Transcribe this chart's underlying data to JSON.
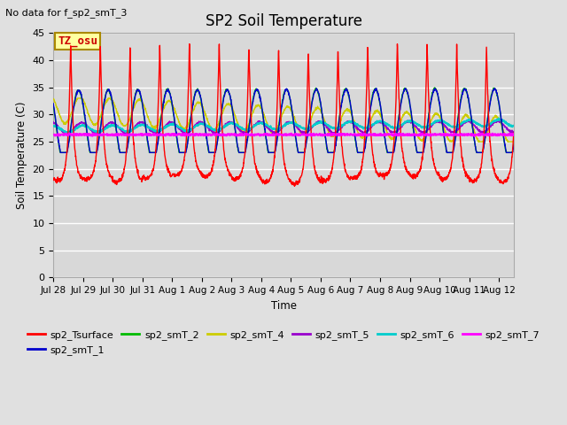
{
  "title": "SP2 Soil Temperature",
  "ylabel": "Soil Temperature (C)",
  "xlabel": "Time",
  "no_data_text": "No data for f_sp2_smT_3",
  "tz_label": "TZ_osu",
  "ylim": [
    0,
    45
  ],
  "yticks": [
    0,
    5,
    10,
    15,
    20,
    25,
    30,
    35,
    40,
    45
  ],
  "xtick_labels": [
    "Jul 28",
    "Jul 29",
    "Jul 30",
    "Jul 31",
    "Aug 1",
    "Aug 2",
    "Aug 3",
    "Aug 4",
    "Aug 5",
    "Aug 6",
    "Aug 7",
    "Aug 8",
    "Aug 9",
    "Aug 10",
    "Aug 11",
    "Aug 12"
  ],
  "n_days": 15.5,
  "bg_color": "#e0e0e0",
  "series_colors": {
    "sp2_Tsurface": "#ff0000",
    "sp2_smT_1": "#0000cc",
    "sp2_smT_2": "#00bb00",
    "sp2_smT_4": "#cccc00",
    "sp2_smT_5": "#9900cc",
    "sp2_smT_6": "#00cccc",
    "sp2_smT_7": "#ff00ff"
  },
  "legend_entries": [
    {
      "label": "sp2_Tsurface",
      "color": "#ff0000"
    },
    {
      "label": "sp2_smT_1",
      "color": "#0000cc"
    },
    {
      "label": "sp2_smT_2",
      "color": "#00bb00"
    },
    {
      "label": "sp2_smT_4",
      "color": "#cccc00"
    },
    {
      "label": "sp2_smT_5",
      "color": "#9900cc"
    },
    {
      "label": "sp2_smT_6",
      "color": "#00cccc"
    },
    {
      "label": "sp2_smT_7",
      "color": "#ff00ff"
    }
  ]
}
